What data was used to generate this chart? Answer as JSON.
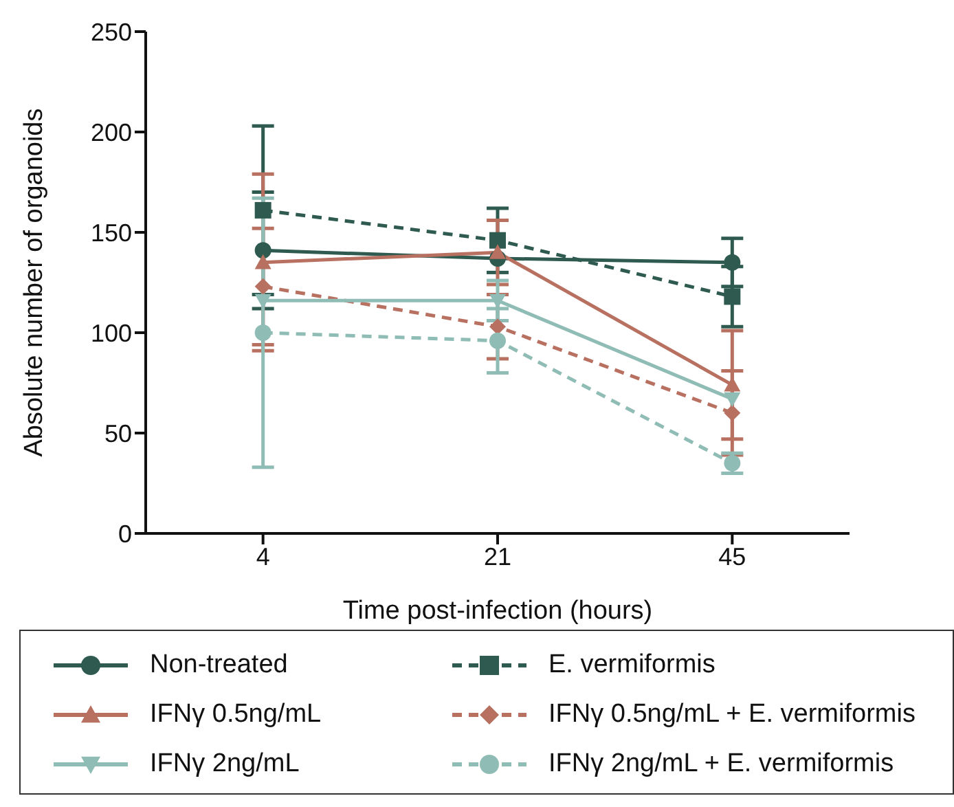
{
  "chart_data": {
    "type": "line",
    "xlabel": "Time post-infection (hours)",
    "ylabel": "Absolute number of organoids",
    "categories": [
      "4",
      "21",
      "45"
    ],
    "ylim": [
      0,
      250
    ],
    "yticks": [
      0,
      50,
      100,
      150,
      200,
      250
    ],
    "legend": "bottom",
    "series": [
      {
        "name": "Non-treated",
        "color": "#2e5a50",
        "values": [
          141,
          137,
          135
        ],
        "errors": [
          29,
          null,
          12
        ],
        "marker": "circle",
        "line_style": "solid"
      },
      {
        "name": "E. vermiformis",
        "color": "#2e5a50",
        "values": [
          161,
          146,
          118
        ],
        "errors": [
          42,
          16,
          15
        ],
        "marker": "square",
        "line_style": "dashed"
      },
      {
        "name": "IFNγ 0.5ng/mL",
        "color": "#b87060",
        "values": [
          135,
          140,
          74
        ],
        "errors": [
          44,
          16,
          27
        ],
        "marker": "triangle",
        "line_style": "solid"
      },
      {
        "name": "IFNγ 0.5ng/mL + E. vermiformis",
        "color": "#b87060",
        "values": [
          123,
          103,
          60
        ],
        "errors": [
          29,
          16,
          21
        ],
        "marker": "diamond",
        "line_style": "dashed"
      },
      {
        "name": "IFNγ 2ng/mL",
        "color": "#8fbcb4",
        "values": [
          116,
          116,
          67
        ],
        "errors": [
          null,
          10,
          null
        ],
        "marker": "triangle-down",
        "line_style": "solid"
      },
      {
        "name": "IFNγ 2ng/mL + E. vermiformis",
        "color": "#8fbcb4",
        "values": [
          100,
          96,
          35
        ],
        "errors": [
          67,
          16,
          5
        ],
        "marker": "circle",
        "line_style": "dashed"
      }
    ]
  }
}
